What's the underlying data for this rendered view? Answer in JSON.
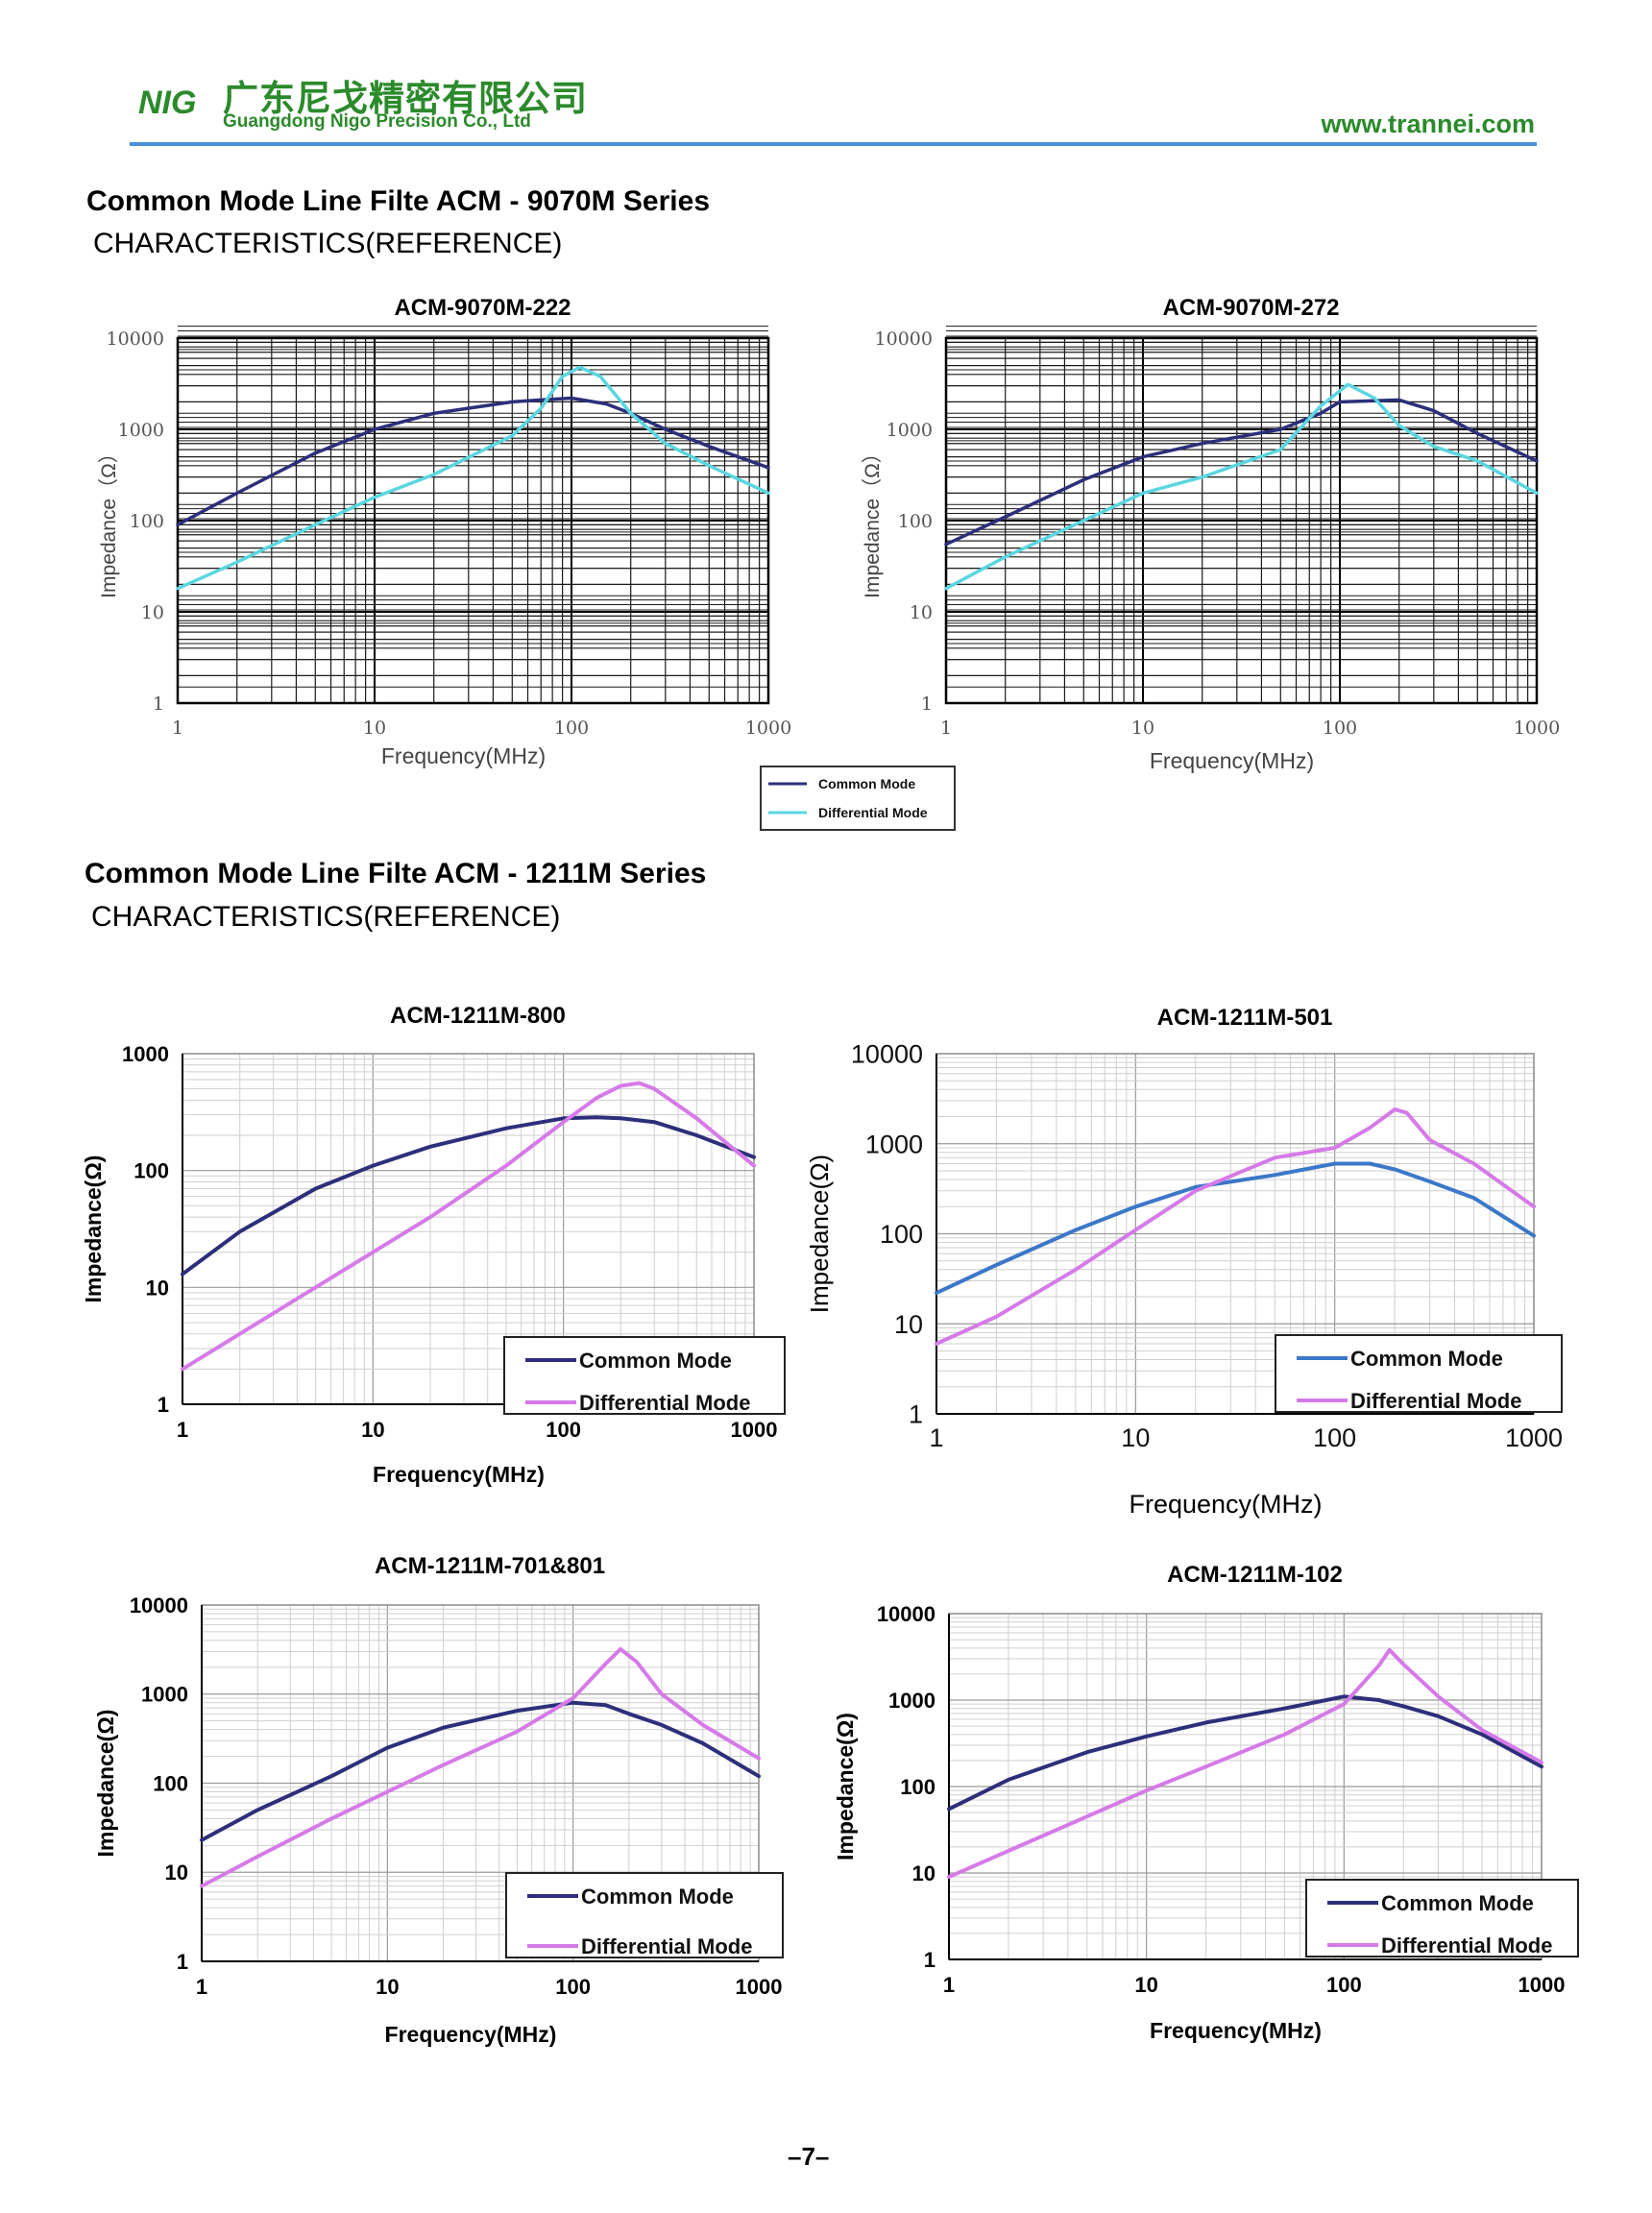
{
  "header": {
    "logo_mark": "NIG",
    "company_cn": "广东尼戈精密有限公司",
    "company_en": "Guangdong Nigo Precision Co., Ltd",
    "url": "www.trannei.com",
    "rule_color": "#4a90d9",
    "brand_color": "#2b8a2b"
  },
  "sections": [
    {
      "title": "Common Mode Line Filte ACM - 9070M Series",
      "subtitle": "CHARACTERISTICS(REFERENCE)"
    },
    {
      "title": "Common Mode Line Filte ACM - 1211M Series",
      "subtitle": "CHARACTERISTICS(REFERENCE)"
    }
  ],
  "shared_legend": {
    "items": [
      "Common Mode",
      "Differential Mode"
    ]
  },
  "page_number": "–7–",
  "chart_data": [
    {
      "type": "line",
      "title": "ACM-9070M-222",
      "xlabel": "Frequency(MHz)",
      "ylabel": "Impedance（Ω）",
      "x_scale": "log",
      "y_scale": "log",
      "xlim": [
        1,
        1000
      ],
      "ylim": [
        1,
        10000
      ],
      "x_ticks": [
        "1",
        "10",
        "100",
        "1000"
      ],
      "y_ticks": [
        "1",
        "10",
        "100",
        "1000",
        "10000"
      ],
      "grid": true,
      "legend": "none",
      "series": [
        {
          "name": "Common Mode",
          "color": "#2c2f7a",
          "points": [
            [
              1,
              90
            ],
            [
              2,
              200
            ],
            [
              5,
              550
            ],
            [
              10,
              1000
            ],
            [
              20,
              1500
            ],
            [
              50,
              2000
            ],
            [
              70,
              2100
            ],
            [
              100,
              2200
            ],
            [
              150,
              1900
            ],
            [
              200,
              1500
            ],
            [
              300,
              1000
            ],
            [
              500,
              650
            ],
            [
              1000,
              380
            ]
          ]
        },
        {
          "name": "Differential Mode",
          "color": "#5ad6e0",
          "points": [
            [
              1,
              18
            ],
            [
              2,
              35
            ],
            [
              5,
              90
            ],
            [
              10,
              180
            ],
            [
              20,
              320
            ],
            [
              50,
              850
            ],
            [
              70,
              1700
            ],
            [
              90,
              3800
            ],
            [
              110,
              4800
            ],
            [
              140,
              3800
            ],
            [
              200,
              1500
            ],
            [
              300,
              700
            ],
            [
              500,
              400
            ],
            [
              1000,
              200
            ]
          ]
        }
      ]
    },
    {
      "type": "line",
      "title": "ACM-9070M-272",
      "xlabel": "Frequency(MHz)",
      "ylabel": "Impedance（Ω）",
      "x_scale": "log",
      "y_scale": "log",
      "xlim": [
        1,
        1000
      ],
      "ylim": [
        1,
        10000
      ],
      "x_ticks": [
        "1",
        "10",
        "100",
        "1000"
      ],
      "y_ticks": [
        "1",
        "10",
        "100",
        "1000",
        "10000"
      ],
      "grid": true,
      "legend": "none",
      "series": [
        {
          "name": "Common Mode",
          "color": "#2c2f7a",
          "points": [
            [
              1,
              55
            ],
            [
              2,
              110
            ],
            [
              5,
              280
            ],
            [
              10,
              500
            ],
            [
              20,
              700
            ],
            [
              50,
              1000
            ],
            [
              80,
              1500
            ],
            [
              100,
              2000
            ],
            [
              200,
              2100
            ],
            [
              300,
              1600
            ],
            [
              500,
              900
            ],
            [
              1000,
              450
            ]
          ]
        },
        {
          "name": "Differential Mode",
          "color": "#5ad6e0",
          "points": [
            [
              1,
              18
            ],
            [
              2,
              40
            ],
            [
              5,
              100
            ],
            [
              10,
              200
            ],
            [
              20,
              300
            ],
            [
              50,
              600
            ],
            [
              80,
              1800
            ],
            [
              110,
              3100
            ],
            [
              150,
              2200
            ],
            [
              200,
              1100
            ],
            [
              300,
              650
            ],
            [
              500,
              450
            ],
            [
              1000,
              200
            ]
          ]
        }
      ]
    },
    {
      "type": "line",
      "title": "ACM-1211M-800",
      "xlabel": "Frequency(MHz)",
      "ylabel": "Impedance(Ω)",
      "x_scale": "log",
      "y_scale": "log",
      "xlim": [
        1,
        1000
      ],
      "ylim": [
        1,
        1000
      ],
      "x_ticks": [
        "1",
        "10",
        "100",
        "1000"
      ],
      "y_ticks": [
        "1",
        "10",
        "100",
        "1000"
      ],
      "grid": true,
      "legend": "bottom-right",
      "series": [
        {
          "name": "Common Mode",
          "color": "#2c2f7a",
          "points": [
            [
              1,
              13
            ],
            [
              2,
              30
            ],
            [
              5,
              70
            ],
            [
              10,
              110
            ],
            [
              20,
              160
            ],
            [
              50,
              230
            ],
            [
              100,
              280
            ],
            [
              150,
              285
            ],
            [
              200,
              280
            ],
            [
              300,
              260
            ],
            [
              500,
              200
            ],
            [
              1000,
              130
            ]
          ]
        },
        {
          "name": "Differential Mode",
          "color": "#d67ae8",
          "points": [
            [
              1,
              2
            ],
            [
              2,
              4
            ],
            [
              5,
              10
            ],
            [
              10,
              20
            ],
            [
              20,
              40
            ],
            [
              50,
              110
            ],
            [
              100,
              260
            ],
            [
              150,
              420
            ],
            [
              200,
              530
            ],
            [
              250,
              560
            ],
            [
              300,
              500
            ],
            [
              500,
              280
            ],
            [
              1000,
              110
            ]
          ]
        }
      ]
    },
    {
      "type": "line",
      "title": "ACM-1211M-501",
      "xlabel": "Frequency(MHz)",
      "ylabel": "Impedance(Ω)",
      "x_scale": "log",
      "y_scale": "log",
      "xlim": [
        1,
        1000
      ],
      "ylim": [
        1,
        10000
      ],
      "x_ticks": [
        "1",
        "10",
        "100",
        "1000"
      ],
      "y_ticks": [
        "1",
        "10",
        "100",
        "1000",
        "10000"
      ],
      "grid": true,
      "legend": "bottom-right",
      "series": [
        {
          "name": "Common Mode",
          "color": "#3b78c8",
          "points": [
            [
              1,
              22
            ],
            [
              2,
              45
            ],
            [
              5,
              110
            ],
            [
              10,
              200
            ],
            [
              20,
              330
            ],
            [
              50,
              450
            ],
            [
              100,
              600
            ],
            [
              150,
              600
            ],
            [
              200,
              520
            ],
            [
              300,
              380
            ],
            [
              500,
              250
            ],
            [
              1000,
              95
            ]
          ]
        },
        {
          "name": "Differential Mode",
          "color": "#d67ae8",
          "points": [
            [
              1,
              6
            ],
            [
              2,
              12
            ],
            [
              5,
              40
            ],
            [
              10,
              110
            ],
            [
              20,
              300
            ],
            [
              50,
              700
            ],
            [
              100,
              900
            ],
            [
              150,
              1500
            ],
            [
              200,
              2400
            ],
            [
              230,
              2200
            ],
            [
              300,
              1100
            ],
            [
              500,
              600
            ],
            [
              1000,
              200
            ]
          ]
        }
      ]
    },
    {
      "type": "line",
      "title": "ACM-1211M-701&801",
      "xlabel": "Frequency(MHz)",
      "ylabel": "Impedance(Ω)",
      "x_scale": "log",
      "y_scale": "log",
      "xlim": [
        1,
        1000
      ],
      "ylim": [
        1,
        10000
      ],
      "x_ticks": [
        "1",
        "10",
        "100",
        "1000"
      ],
      "y_ticks": [
        "1",
        "10",
        "100",
        "1000",
        "10000"
      ],
      "grid": true,
      "legend": "bottom-right",
      "series": [
        {
          "name": "Common Mode",
          "color": "#2c2f7a",
          "points": [
            [
              1,
              23
            ],
            [
              2,
              50
            ],
            [
              5,
              120
            ],
            [
              10,
              250
            ],
            [
              20,
              420
            ],
            [
              50,
              650
            ],
            [
              100,
              800
            ],
            [
              150,
              750
            ],
            [
              200,
              600
            ],
            [
              300,
              450
            ],
            [
              500,
              280
            ],
            [
              1000,
              120
            ]
          ]
        },
        {
          "name": "Differential Mode",
          "color": "#d67ae8",
          "points": [
            [
              1,
              7
            ],
            [
              2,
              15
            ],
            [
              5,
              40
            ],
            [
              10,
              80
            ],
            [
              20,
              160
            ],
            [
              50,
              380
            ],
            [
              100,
              900
            ],
            [
              150,
              2200
            ],
            [
              180,
              3200
            ],
            [
              220,
              2300
            ],
            [
              300,
              1000
            ],
            [
              500,
              450
            ],
            [
              1000,
              190
            ]
          ]
        }
      ]
    },
    {
      "type": "line",
      "title": "ACM-1211M-102",
      "xlabel": "Frequency(MHz)",
      "ylabel": "Impedance(Ω)",
      "x_scale": "log",
      "y_scale": "log",
      "xlim": [
        1,
        1000
      ],
      "ylim": [
        1,
        10000
      ],
      "x_ticks": [
        "1",
        "10",
        "100",
        "1000"
      ],
      "y_ticks": [
        "1",
        "10",
        "100",
        "1000",
        "10000"
      ],
      "grid": true,
      "legend": "bottom-right",
      "series": [
        {
          "name": "Common Mode",
          "color": "#2c2f7a",
          "points": [
            [
              1,
              55
            ],
            [
              2,
              120
            ],
            [
              5,
              250
            ],
            [
              10,
              380
            ],
            [
              20,
              550
            ],
            [
              50,
              800
            ],
            [
              100,
              1100
            ],
            [
              150,
              1000
            ],
            [
              200,
              850
            ],
            [
              300,
              650
            ],
            [
              500,
              400
            ],
            [
              1000,
              170
            ]
          ]
        },
        {
          "name": "Differential Mode",
          "color": "#d67ae8",
          "points": [
            [
              1,
              9
            ],
            [
              2,
              18
            ],
            [
              5,
              45
            ],
            [
              10,
              90
            ],
            [
              20,
              170
            ],
            [
              50,
              400
            ],
            [
              100,
              900
            ],
            [
              150,
              2500
            ],
            [
              170,
              3800
            ],
            [
              200,
              2600
            ],
            [
              300,
              1100
            ],
            [
              500,
              450
            ],
            [
              1000,
              190
            ]
          ]
        }
      ]
    }
  ]
}
